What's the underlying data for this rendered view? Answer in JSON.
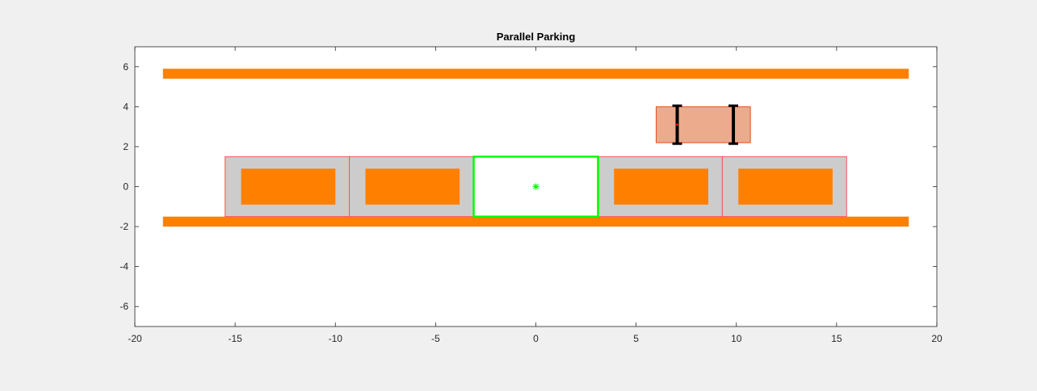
{
  "chart_data": {
    "type": "scatter",
    "title": "Parallel Parking",
    "xlabel": "",
    "ylabel": "",
    "xlim": [
      -20,
      20
    ],
    "ylim": [
      -7,
      7
    ],
    "xticks": [
      -20,
      -15,
      -10,
      -5,
      0,
      5,
      10,
      15,
      20
    ],
    "yticks": [
      -6,
      -4,
      -2,
      0,
      2,
      4,
      6
    ],
    "grid": false,
    "colors": {
      "wall": "#ff8000",
      "slot_fill": "#cccccc",
      "slot_edge": "#ff5050",
      "parked_car": "#ff8000",
      "target_slot": "#00ff00",
      "ego_car_fill": "#ecab8c",
      "ego_car_edge": "#e8501c",
      "wheel": "#000000",
      "ego_reference_point": "#ff0000"
    },
    "walls": [
      {
        "x": [
          -18.6,
          18.6
        ],
        "y": [
          5.4,
          5.9
        ]
      },
      {
        "x": [
          -18.6,
          18.6
        ],
        "y": [
          -2.0,
          -1.5
        ]
      }
    ],
    "slots": [
      {
        "x": [
          -15.5,
          -9.3
        ],
        "y": [
          -1.5,
          1.5
        ],
        "occupied": true
      },
      {
        "x": [
          -9.3,
          -3.1
        ],
        "y": [
          -1.5,
          1.5
        ],
        "occupied": true
      },
      {
        "x": [
          -3.1,
          3.1
        ],
        "y": [
          -1.5,
          1.5
        ],
        "occupied": false,
        "target": true
      },
      {
        "x": [
          3.1,
          9.3
        ],
        "y": [
          -1.5,
          1.5
        ],
        "occupied": true
      },
      {
        "x": [
          9.3,
          15.5
        ],
        "y": [
          -1.5,
          1.5
        ],
        "occupied": true
      }
    ],
    "parked_cars": [
      {
        "x": [
          -14.7,
          -10.0
        ],
        "y": [
          -0.9,
          0.9
        ]
      },
      {
        "x": [
          -8.5,
          -3.8
        ],
        "y": [
          -0.9,
          0.9
        ]
      },
      {
        "x": [
          3.9,
          8.6
        ],
        "y": [
          -0.9,
          0.9
        ]
      },
      {
        "x": [
          10.1,
          14.8
        ],
        "y": [
          -0.9,
          0.9
        ]
      }
    ],
    "target_marker": {
      "x": 0,
      "y": 0,
      "marker": "*"
    },
    "ego_car": {
      "x": [
        6.0,
        10.7
      ],
      "y": [
        2.2,
        4.0
      ],
      "reference_point": {
        "x": 7.05,
        "y": 3.1
      },
      "wheels": [
        {
          "x": 7.05,
          "y": [
            2.15,
            4.05
          ]
        },
        {
          "x": 9.85,
          "y": [
            2.15,
            4.05
          ]
        }
      ]
    }
  }
}
